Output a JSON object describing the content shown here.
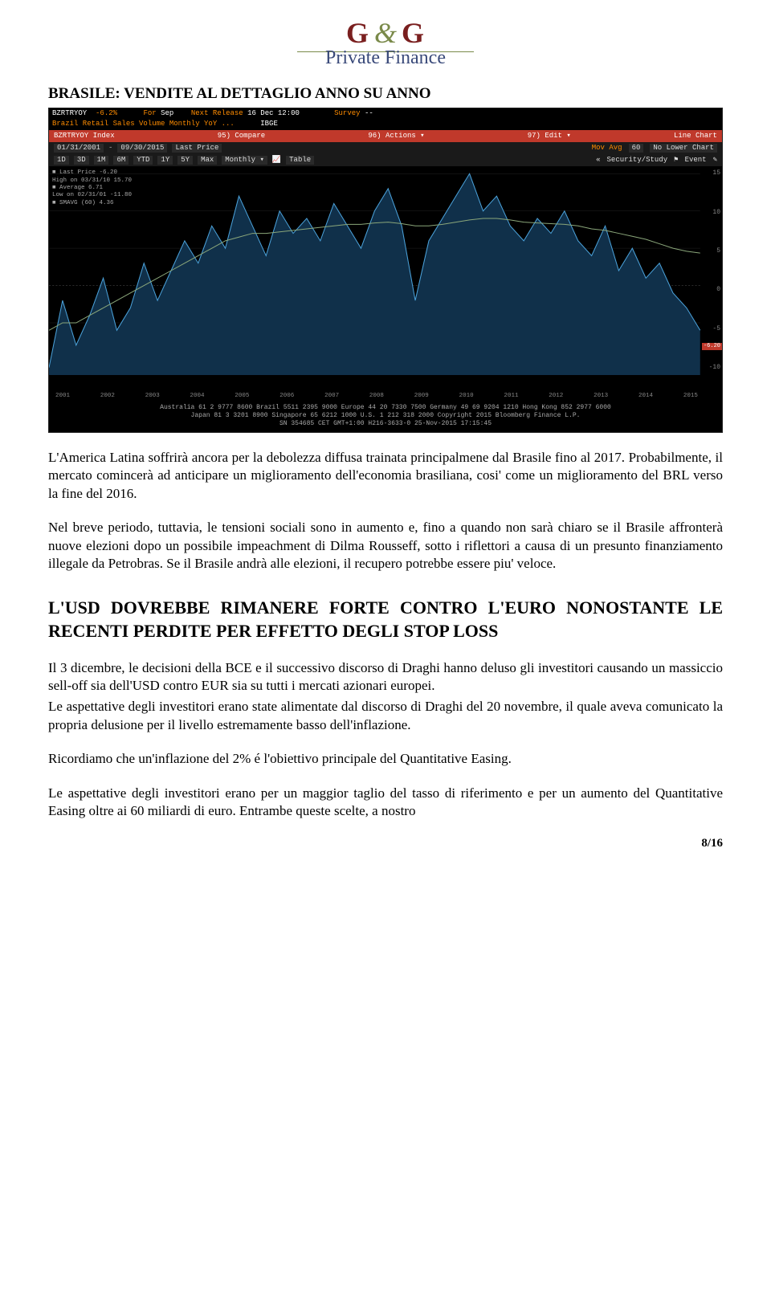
{
  "logo": {
    "left": "G",
    "amp": "&",
    "right": "G",
    "sub": "Private Finance"
  },
  "section_title": "BRASILE: VENDITE AL DETTAGLIO ANNO SU ANNO",
  "terminal": {
    "row1": {
      "ticker": "BZRTRYOY",
      "value": "-6.2%",
      "for_lbl": "For",
      "for_val": "Sep",
      "next_lbl": "Next Release",
      "next_val": "16 Dec 12:00",
      "survey_lbl": "Survey",
      "survey_val": "--"
    },
    "row2": {
      "desc": "Brazil Retail Sales Volume Monthly YoY ...",
      "src": "IBGE"
    },
    "red": {
      "idx": "BZRTRYOY Index",
      "c95": "95) Compare",
      "c96": "96) Actions ▾",
      "c97": "97) Edit ▾",
      "right": "Line Chart"
    },
    "tool1": {
      "from": "01/31/2001",
      "to": "09/30/2015",
      "lp": "Last Price",
      "mavg": "Mov Avg",
      "mavg_n": "60",
      "lower": "No Lower Chart"
    },
    "tool2": {
      "ranges": [
        "1D",
        "3D",
        "1M",
        "6M",
        "YTD",
        "1Y",
        "5Y",
        "Max",
        "Monthly ▾"
      ],
      "extra": [
        "Table"
      ],
      "right": [
        "«",
        "Security/Study",
        "⚑",
        "Event",
        "✎"
      ]
    },
    "legend": [
      "■ Last Price        -6.20",
      "  High on 03/31/10  15.70",
      "■ Average            6.71",
      "  Low on 02/31/01  -11.80",
      "■ SMAVG (60)         4.36"
    ],
    "ylabels": [
      "15",
      "10",
      "5",
      "0",
      "-5",
      "-10"
    ],
    "xlabels": [
      "2001",
      "2002",
      "2003",
      "2004",
      "2005",
      "2006",
      "2007",
      "2008",
      "2009",
      "2010",
      "2011",
      "2012",
      "2013",
      "2014",
      "2015"
    ],
    "side_marker": "-6.20",
    "footer": [
      "Australia 61 2 9777 8600 Brazil 5511 2395 9000 Europe 44 20 7330 7500 Germany 49 69 9204 1210 Hong Kong 852 2977 6000",
      "Japan 81 3 3201 8900        Singapore 65 6212 1000        U.S. 1 212 318 2000        Copyright 2015 Bloomberg Finance L.P.",
      "SN 354685 CET  GMT+1:00 H216-3633-0 25-Nov-2015 17:15:45"
    ],
    "chart": {
      "bg": "#000000",
      "area_fill": "#10304a",
      "area_stroke": "#4aa0d8",
      "sma_stroke": "#8aa67a",
      "zero_line": "#555555",
      "ylim": [
        -12,
        16
      ],
      "points": [
        -11,
        -2,
        -8,
        -4,
        1,
        -6,
        -3,
        3,
        -2,
        2,
        6,
        3,
        8,
        5,
        12,
        8,
        4,
        10,
        7,
        9,
        6,
        11,
        8,
        5,
        10,
        13,
        8,
        -2,
        6,
        9,
        12,
        15,
        10,
        12,
        8,
        6,
        9,
        7,
        10,
        6,
        4,
        8,
        2,
        5,
        1,
        3,
        -1,
        -3,
        -6
      ],
      "sma": [
        -6,
        -5,
        -5,
        -4,
        -3,
        -2,
        -1,
        0,
        1,
        2,
        3,
        4,
        5,
        6,
        6.5,
        7,
        7,
        7.2,
        7.4,
        7.6,
        7.8,
        8,
        8.2,
        8.2,
        8.4,
        8.5,
        8.3,
        8,
        8,
        8.2,
        8.5,
        8.8,
        9,
        9,
        8.8,
        8.5,
        8.4,
        8.3,
        8.2,
        8,
        7.6,
        7.4,
        7,
        6.6,
        6.2,
        5.6,
        5,
        4.6,
        4.36
      ]
    }
  },
  "para1": "L'America Latina soffrirà ancora per la debolezza diffusa trainata principalmene dal Brasile fino al 2017. Probabilmente, il mercato comincerà ad anticipare un miglioramento dell'economia brasiliana, cosi' come un miglioramento del BRL verso la fine del 2016.",
  "para2": "Nel breve periodo, tuttavia, le tensioni sociali sono in aumento e, fino a quando non sarà chiaro se il Brasile affronterà nuove elezioni dopo un possibile impeachment di Dilma Rousseff, sotto i riflettori a causa di un presunto finanziamento illegale da Petrobras. Se il Brasile andrà alle elezioni, il recupero potrebbe essere piu' veloce.",
  "h2": "L'USD DOVREBBE RIMANERE FORTE CONTRO L'EURO NONOSTANTE LE RECENTI PERDITE PER EFFETTO DEGLI STOP LOSS",
  "para3": "Il 3 dicembre, le decisioni della BCE e il successivo discorso di Draghi hanno deluso gli investitori causando un massiccio sell-off sia dell'USD contro EUR sia su tutti i mercati azionari europei.",
  "para4": "Le aspettative degli investitori erano state alimentate dal discorso di Draghi del 20 novembre, il quale aveva comunicato la propria delusione per il livello estremamente basso dell'inflazione.",
  "para5": "Ricordiamo che un'inflazione del 2% é l'obiettivo principale del Quantitative Easing.",
  "para6": "Le aspettative degli investitori erano per un maggior taglio del tasso di riferimento e per un aumento del Quantitative Easing oltre ai 60 miliardi di euro. Entrambe queste scelte, a nostro",
  "page_num": "8/16"
}
